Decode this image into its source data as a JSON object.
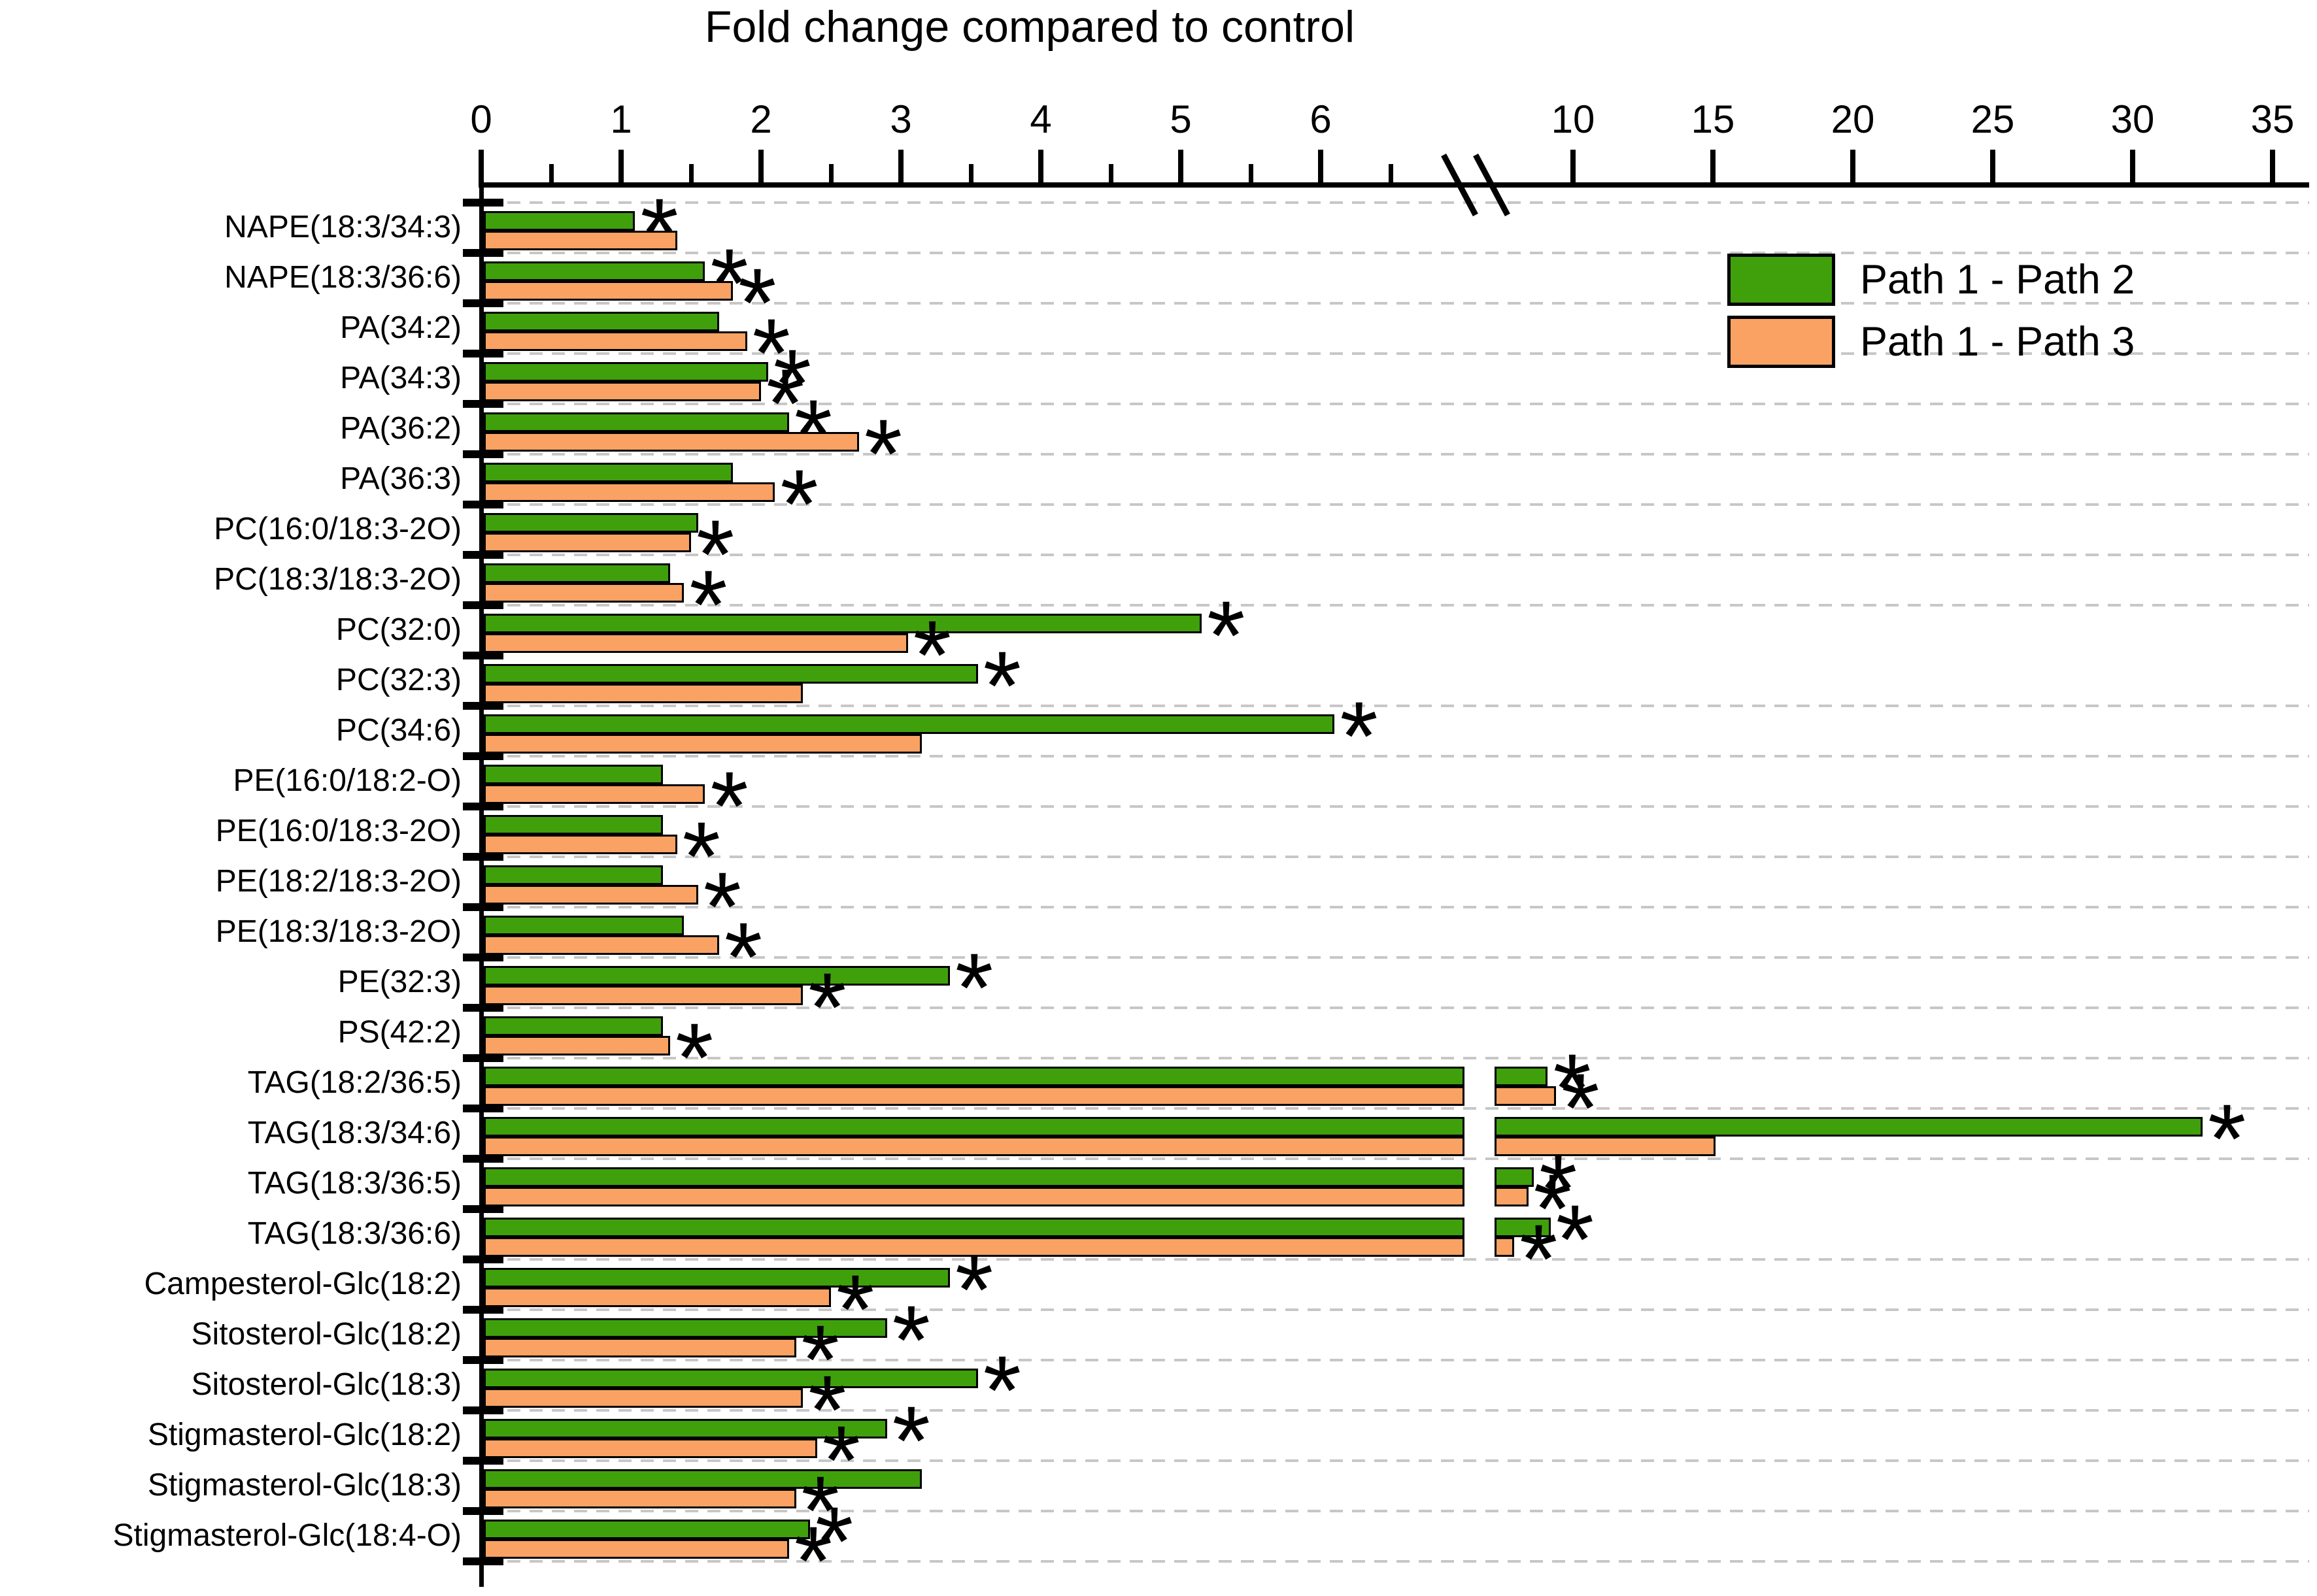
{
  "chart_data": {
    "type": "bar",
    "orientation": "horizontal",
    "title": "Fold change compared to control",
    "categories": [
      "NAPE(18:3/34:3)",
      "NAPE(18:3/36:6)",
      "PA(34:2)",
      "PA(34:3)",
      "PA(36:2)",
      "PA(36:3)",
      "PC(16:0/18:3-2O)",
      "PC(18:3/18:3-2O)",
      "PC(32:0)",
      "PC(32:3)",
      "PC(34:6)",
      "PE(16:0/18:2-O)",
      "PE(16:0/18:3-2O)",
      "PE(18:2/18:3-2O)",
      "PE(18:3/18:3-2O)",
      "PE(32:3)",
      "PS(42:2)",
      "TAG(18:2/36:5)",
      "TAG(18:3/34:6)",
      "TAG(18:3/36:5)",
      "TAG(18:3/36:6)",
      "Campesterol-Glc(18:2)",
      "Sitosterol-Glc(18:2)",
      "Sitosterol-Glc(18:3)",
      "Stigmasterol-Glc(18:2)",
      "Stigmasterol-Glc(18:3)",
      "Stigmasterol-Glc(18:4-O)"
    ],
    "series": [
      {
        "name": "Path 1 - Path 2",
        "color": "#3FA00C",
        "values": [
          1.1,
          1.6,
          1.7,
          2.05,
          2.2,
          1.8,
          1.55,
          1.35,
          5.15,
          3.55,
          6.1,
          1.3,
          1.3,
          1.3,
          1.45,
          3.35,
          1.3,
          9.1,
          32.5,
          8.6,
          9.2,
          3.35,
          2.9,
          3.55,
          2.9,
          3.15,
          2.35
        ],
        "significant": [
          true,
          true,
          false,
          true,
          true,
          false,
          false,
          false,
          true,
          true,
          true,
          false,
          false,
          false,
          false,
          true,
          false,
          true,
          true,
          true,
          true,
          true,
          true,
          true,
          true,
          false,
          true
        ]
      },
      {
        "name": "Path 1 - Path 3",
        "color": "#FAA263",
        "values": [
          1.4,
          1.8,
          1.9,
          2.0,
          2.7,
          2.1,
          1.5,
          1.45,
          3.05,
          2.3,
          3.15,
          1.6,
          1.4,
          1.55,
          1.7,
          2.3,
          1.35,
          9.4,
          15.1,
          8.4,
          7.9,
          2.5,
          2.25,
          2.3,
          2.4,
          2.25,
          2.2
        ],
        "significant": [
          false,
          true,
          true,
          true,
          true,
          true,
          true,
          true,
          true,
          false,
          false,
          true,
          true,
          true,
          true,
          true,
          true,
          true,
          false,
          true,
          true,
          true,
          true,
          true,
          true,
          true,
          true
        ]
      }
    ],
    "significance_marker": "*",
    "x_axis": {
      "position": "top",
      "ticks_before_break": [
        0,
        1,
        2,
        3,
        4,
        5,
        6
      ],
      "minor_ticks_before_break": [
        0.5,
        1.5,
        2.5,
        3.5,
        4.5,
        5.5,
        6.5
      ],
      "ticks_after_break": [
        10,
        15,
        20,
        25,
        30,
        35
      ],
      "axis_break": {
        "from": 6.9,
        "to": 7.3
      },
      "xlim": [
        0,
        35
      ]
    },
    "grid": "dashed-horizontal",
    "legend_position": "top-right",
    "colors": {
      "bar_outline": "#000000",
      "gridline": "#c7c7c7",
      "axis": "#000000",
      "background": "#ffffff"
    }
  }
}
